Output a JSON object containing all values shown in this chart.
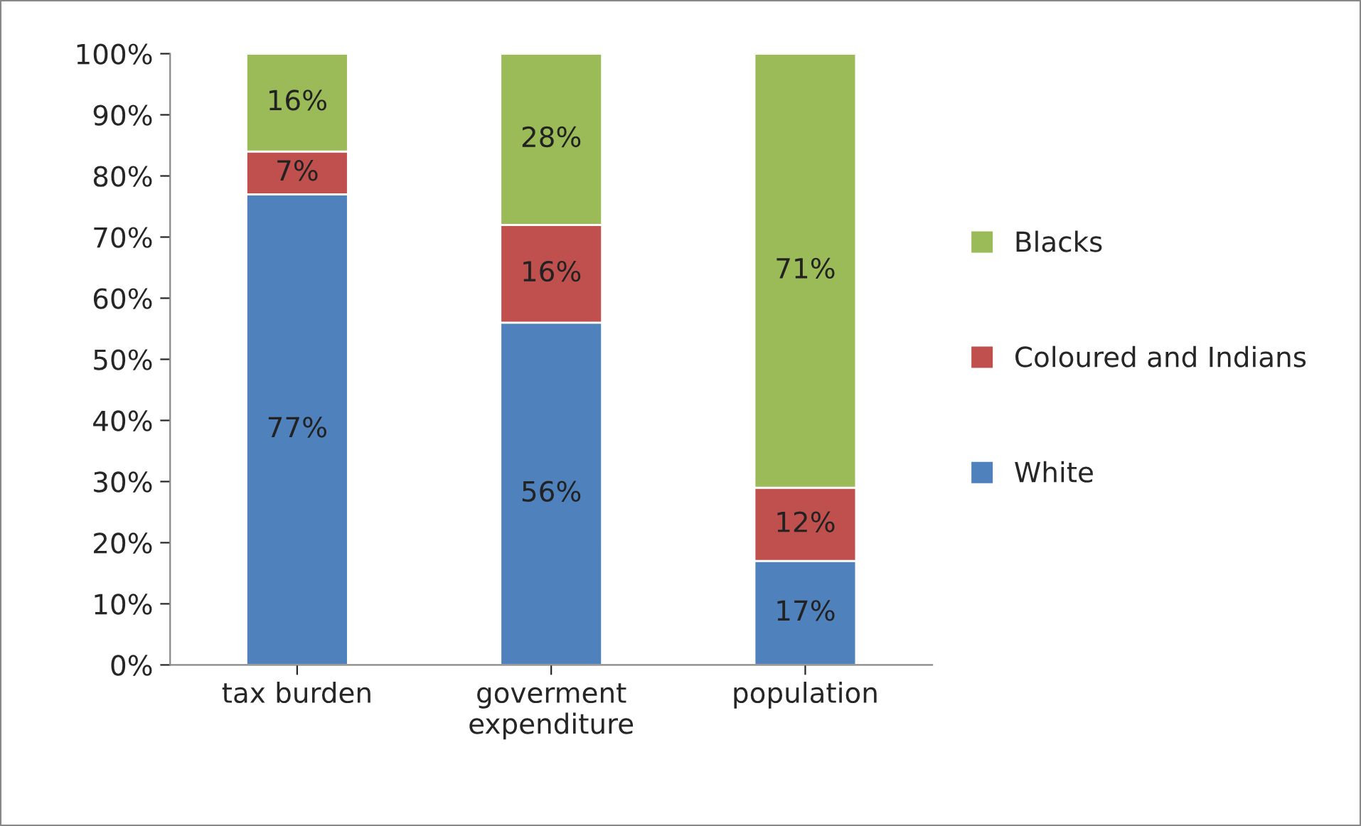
{
  "chart_data": {
    "type": "bar",
    "stacked": true,
    "categories": [
      "tax burden",
      "goverment\nexpenditure",
      "population"
    ],
    "series": [
      {
        "name": "White",
        "color": "#4f81bd",
        "values": [
          77,
          56,
          17
        ],
        "value_labels": [
          "77%",
          "56%",
          "17%"
        ]
      },
      {
        "name": "Coloured and Indians",
        "color": "#c0504d",
        "values": [
          7,
          16,
          12
        ],
        "value_labels": [
          "7%",
          "16%",
          "12%"
        ]
      },
      {
        "name": "Blacks",
        "color": "#9bbb59",
        "values": [
          16,
          28,
          71
        ],
        "value_labels": [
          "16%",
          "28%",
          "71%"
        ]
      }
    ],
    "ylim": [
      0,
      100
    ],
    "yticks": [
      {
        "value": 0,
        "label": "0%"
      },
      {
        "value": 10,
        "label": "10%"
      },
      {
        "value": 20,
        "label": "20%"
      },
      {
        "value": 30,
        "label": "30%"
      },
      {
        "value": 40,
        "label": "40%"
      },
      {
        "value": 50,
        "label": "50%"
      },
      {
        "value": 60,
        "label": "60%"
      },
      {
        "value": 70,
        "label": "70%"
      },
      {
        "value": 80,
        "label": "80%"
      },
      {
        "value": 90,
        "label": "90%"
      },
      {
        "value": 100,
        "label": "100%"
      }
    ],
    "grid": false,
    "legend": "right"
  }
}
